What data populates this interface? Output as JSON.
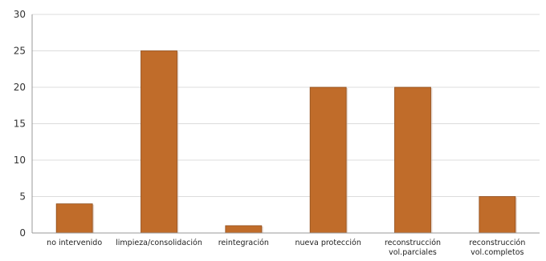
{
  "chart_data": {
    "type": "bar",
    "categories": [
      [
        "no intervenido"
      ],
      [
        "limpieza/consolidación"
      ],
      [
        "reintegración"
      ],
      [
        "nueva protección"
      ],
      [
        "reconstrucción",
        "vol.parciales"
      ],
      [
        "reconstrucción",
        "vol.completos"
      ]
    ],
    "values": [
      4,
      25,
      1,
      20,
      20,
      5
    ],
    "ylim": [
      0,
      30
    ],
    "yticks": [
      0,
      5,
      10,
      15,
      20,
      25,
      30
    ],
    "grid": true,
    "bar_color": "#c06c2a",
    "bar_edge_color": "#8f4c1a",
    "grid_color": "#dcdcdc",
    "axis_color": "#999999"
  }
}
